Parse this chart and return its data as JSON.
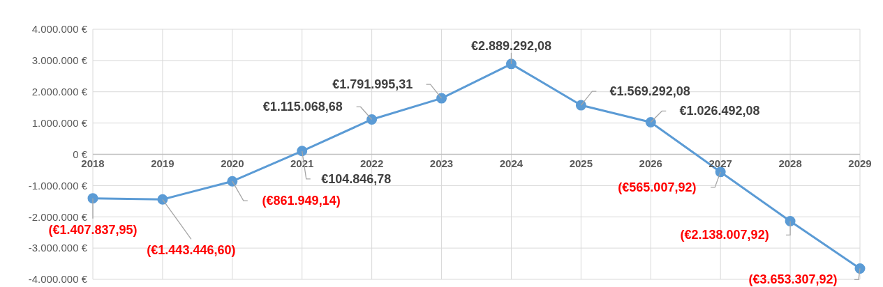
{
  "chart_data": {
    "type": "line",
    "categories": [
      "2018",
      "2019",
      "2020",
      "2021",
      "2022",
      "2023",
      "2024",
      "2025",
      "2026",
      "2027",
      "2028",
      "2029"
    ],
    "series": [
      {
        "color": "#5b9bd5",
        "values": [
          -1407837.95,
          -1443446.6,
          -861949.14,
          104846.78,
          1115068.68,
          1791995.31,
          2889292.08,
          1569292.08,
          1026492.08,
          -565007.92,
          -2138007.92,
          -3653307.92
        ],
        "value_labels": [
          "(€1.407.837,95)",
          "(€1.443.446,60)",
          "(€861.949,14)",
          "€104.846,78",
          "€1.115.068,68",
          "€1.791.995,31",
          "€2.889.292,08",
          "€1.569.292,08",
          "€1.026.492,08",
          "(€565.007,92)",
          "(€2.138.007,92)",
          "(€3.653.307,92)"
        ]
      }
    ],
    "ylim": [
      -4000000,
      4000000
    ],
    "yticks": [
      {
        "value": -4000000,
        "label": "-4.000.000 €"
      },
      {
        "value": -3000000,
        "label": "-3.000.000 €"
      },
      {
        "value": -2000000,
        "label": "-2.000.000 €"
      },
      {
        "value": -1000000,
        "label": "-1.000.000 €"
      },
      {
        "value": 0,
        "label": "0 €"
      },
      {
        "value": 1000000,
        "label": "1.000.000 €"
      },
      {
        "value": 2000000,
        "label": "2.000.000 €"
      },
      {
        "value": 3000000,
        "label": "3.000.000 €"
      },
      {
        "value": 4000000,
        "label": "4.000.000 €"
      }
    ],
    "grid": true,
    "marker": "circle",
    "line_style": "solid"
  }
}
